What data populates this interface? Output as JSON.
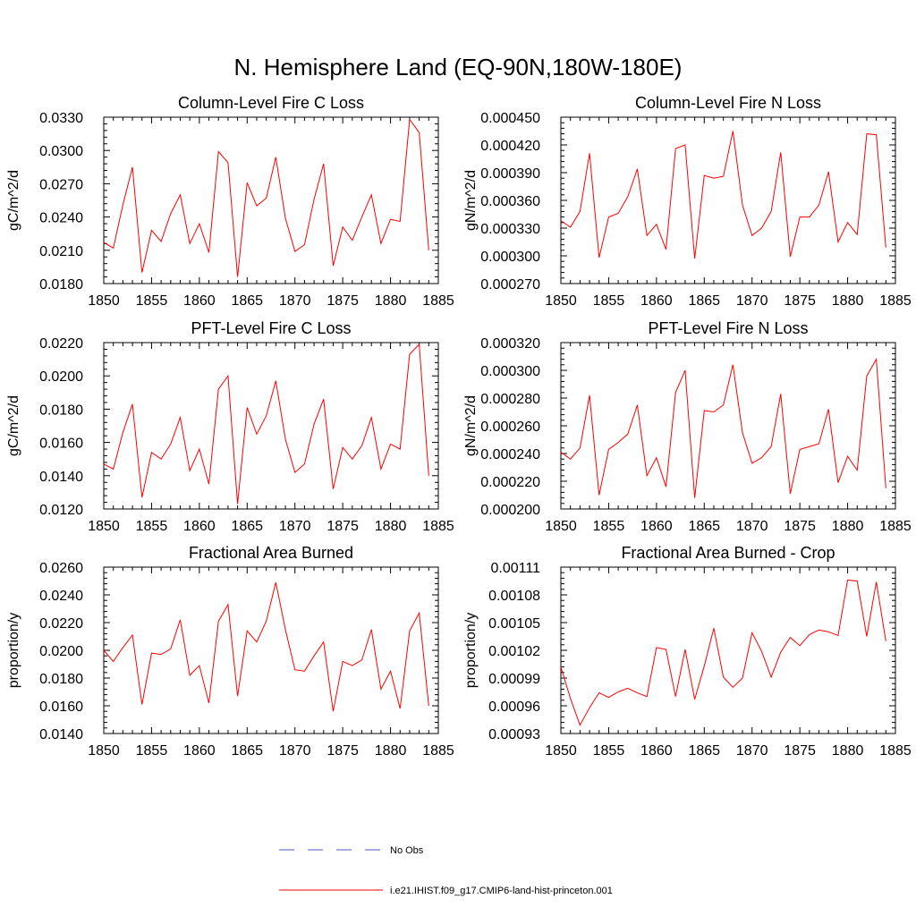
{
  "title": "N. Hemisphere Land (EQ-90N,180W-180E)",
  "legend": {
    "no_obs": "No Obs",
    "model": "i.e21.IHIST.f09_g17.CMIP6-land-hist-princeton.001"
  },
  "colors": {
    "model": "#ff0000",
    "obs": "#4c56b0",
    "axes": "#000000"
  },
  "chart_data": [
    {
      "type": "line",
      "title": "Column-Level Fire C Loss",
      "ylabel": "gC/m^2/d",
      "xlim": [
        1850,
        1885
      ],
      "ylim": [
        0.018,
        0.033
      ],
      "xticks": [
        1850,
        1855,
        1860,
        1865,
        1870,
        1875,
        1880,
        1885
      ],
      "yticks": [
        0.018,
        0.021,
        0.024,
        0.027,
        0.03,
        0.033
      ],
      "ytick_labels": [
        "0.0180",
        "0.0210",
        "0.0240",
        "0.0270",
        "0.0300",
        "0.0330"
      ],
      "grid": false,
      "series": [
        {
          "name": "i.e21.IHIST.f09_g17.CMIP6-land-hist-princeton.001",
          "x": [
            1850,
            1851,
            1852,
            1853,
            1854,
            1855,
            1856,
            1857,
            1858,
            1859,
            1860,
            1861,
            1862,
            1863,
            1864,
            1865,
            1866,
            1867,
            1868,
            1869,
            1870,
            1871,
            1872,
            1873,
            1874,
            1875,
            1876,
            1877,
            1878,
            1879,
            1880,
            1881,
            1882,
            1883,
            1884
          ],
          "values": [
            0.0217,
            0.0212,
            0.0251,
            0.0285,
            0.019,
            0.0228,
            0.0218,
            0.0243,
            0.026,
            0.0216,
            0.0234,
            0.0208,
            0.0299,
            0.0289,
            0.0186,
            0.0271,
            0.025,
            0.0257,
            0.0294,
            0.0239,
            0.0209,
            0.0215,
            0.0256,
            0.0288,
            0.0196,
            0.0231,
            0.0219,
            0.024,
            0.026,
            0.0216,
            0.0238,
            0.0236,
            0.0328,
            0.0316,
            0.021
          ]
        }
      ]
    },
    {
      "type": "line",
      "title": "Column-Level Fire N Loss",
      "ylabel": "gN/m^2/d",
      "xlim": [
        1850,
        1885
      ],
      "ylim": [
        0.00027,
        0.00045
      ],
      "xticks": [
        1850,
        1855,
        1860,
        1865,
        1870,
        1875,
        1880,
        1885
      ],
      "yticks": [
        0.00027,
        0.0003,
        0.00033,
        0.00036,
        0.00039,
        0.00042,
        0.00045
      ],
      "ytick_labels": [
        "0.000270",
        "0.000300",
        "0.000330",
        "0.000360",
        "0.000390",
        "0.000420",
        "0.000450"
      ],
      "grid": false,
      "series": [
        {
          "name": "i.e21.IHIST.f09_g17.CMIP6-land-hist-princeton.001",
          "x": [
            1850,
            1851,
            1852,
            1853,
            1854,
            1855,
            1856,
            1857,
            1858,
            1859,
            1860,
            1861,
            1862,
            1863,
            1864,
            1865,
            1866,
            1867,
            1868,
            1869,
            1870,
            1871,
            1872,
            1873,
            1874,
            1875,
            1876,
            1877,
            1878,
            1879,
            1880,
            1881,
            1882,
            1883,
            1884
          ],
          "values": [
            0.000338,
            0.000331,
            0.000348,
            0.000411,
            0.000298,
            0.000342,
            0.000346,
            0.000364,
            0.000394,
            0.000322,
            0.000334,
            0.000307,
            0.000416,
            0.00042,
            0.000297,
            0.000387,
            0.000384,
            0.000386,
            0.000435,
            0.000355,
            0.000322,
            0.00033,
            0.000348,
            0.000412,
            0.000299,
            0.000342,
            0.000342,
            0.000355,
            0.000391,
            0.000315,
            0.000336,
            0.000323,
            0.000432,
            0.000431,
            0.000309
          ]
        }
      ]
    },
    {
      "type": "line",
      "title": "PFT-Level Fire C Loss",
      "ylabel": "gC/m^2/d",
      "xlim": [
        1850,
        1885
      ],
      "ylim": [
        0.012,
        0.022
      ],
      "xticks": [
        1850,
        1855,
        1860,
        1865,
        1870,
        1875,
        1880,
        1885
      ],
      "yticks": [
        0.012,
        0.014,
        0.016,
        0.018,
        0.02,
        0.022
      ],
      "ytick_labels": [
        "0.0120",
        "0.0140",
        "0.0160",
        "0.0180",
        "0.0200",
        "0.0220"
      ],
      "grid": false,
      "series": [
        {
          "name": "i.e21.IHIST.f09_g17.CMIP6-land-hist-princeton.001",
          "x": [
            1850,
            1851,
            1852,
            1853,
            1854,
            1855,
            1856,
            1857,
            1858,
            1859,
            1860,
            1861,
            1862,
            1863,
            1864,
            1865,
            1866,
            1867,
            1868,
            1869,
            1870,
            1871,
            1872,
            1873,
            1874,
            1875,
            1876,
            1877,
            1878,
            1879,
            1880,
            1881,
            1882,
            1883,
            1884
          ],
          "values": [
            0.0147,
            0.0144,
            0.0166,
            0.0183,
            0.0127,
            0.0154,
            0.015,
            0.0159,
            0.0175,
            0.0143,
            0.0156,
            0.0135,
            0.0192,
            0.02,
            0.0123,
            0.0181,
            0.0165,
            0.0176,
            0.0197,
            0.0162,
            0.0142,
            0.0147,
            0.0171,
            0.0186,
            0.0132,
            0.0157,
            0.015,
            0.0158,
            0.0175,
            0.0144,
            0.0159,
            0.0156,
            0.0213,
            0.0219,
            0.014
          ]
        }
      ]
    },
    {
      "type": "line",
      "title": "PFT-Level Fire N Loss",
      "ylabel": "gN/m^2/d",
      "xlim": [
        1850,
        1885
      ],
      "ylim": [
        0.0002,
        0.00032
      ],
      "xticks": [
        1850,
        1855,
        1860,
        1865,
        1870,
        1875,
        1880,
        1885
      ],
      "yticks": [
        0.0002,
        0.00022,
        0.00024,
        0.00026,
        0.00028,
        0.0003,
        0.00032
      ],
      "ytick_labels": [
        "0.000200",
        "0.000220",
        "0.000240",
        "0.000260",
        "0.000280",
        "0.000300",
        "0.000320"
      ],
      "grid": false,
      "series": [
        {
          "name": "i.e21.IHIST.f09_g17.CMIP6-land-hist-princeton.001",
          "x": [
            1850,
            1851,
            1852,
            1853,
            1854,
            1855,
            1856,
            1857,
            1858,
            1859,
            1860,
            1861,
            1862,
            1863,
            1864,
            1865,
            1866,
            1867,
            1868,
            1869,
            1870,
            1871,
            1872,
            1873,
            1874,
            1875,
            1876,
            1877,
            1878,
            1879,
            1880,
            1881,
            1882,
            1883,
            1884
          ],
          "values": [
            0.000241,
            0.000236,
            0.000244,
            0.000282,
            0.00021,
            0.000243,
            0.000248,
            0.000254,
            0.000275,
            0.000224,
            0.000237,
            0.000216,
            0.000284,
            0.0003,
            0.000208,
            0.000271,
            0.00027,
            0.000275,
            0.000304,
            0.000255,
            0.000233,
            0.000237,
            0.000245,
            0.000283,
            0.000211,
            0.000243,
            0.000245,
            0.000247,
            0.000272,
            0.000219,
            0.000238,
            0.000228,
            0.000296,
            0.000308,
            0.000215
          ]
        }
      ]
    },
    {
      "type": "line",
      "title": "Fractional Area Burned",
      "ylabel": "proportion/y",
      "xlim": [
        1850,
        1885
      ],
      "ylim": [
        0.014,
        0.026
      ],
      "xticks": [
        1850,
        1855,
        1860,
        1865,
        1870,
        1875,
        1880,
        1885
      ],
      "yticks": [
        0.014,
        0.016,
        0.018,
        0.02,
        0.022,
        0.024,
        0.026
      ],
      "ytick_labels": [
        "0.0140",
        "0.0160",
        "0.0180",
        "0.0200",
        "0.0220",
        "0.0240",
        "0.0260"
      ],
      "grid": false,
      "series": [
        {
          "name": "i.e21.IHIST.f09_g17.CMIP6-land-hist-princeton.001",
          "x": [
            1850,
            1851,
            1852,
            1853,
            1854,
            1855,
            1856,
            1857,
            1858,
            1859,
            1860,
            1861,
            1862,
            1863,
            1864,
            1865,
            1866,
            1867,
            1868,
            1869,
            1870,
            1871,
            1872,
            1873,
            1874,
            1875,
            1876,
            1877,
            1878,
            1879,
            1880,
            1881,
            1882,
            1883,
            1884
          ],
          "values": [
            0.02,
            0.0192,
            0.0202,
            0.0211,
            0.0161,
            0.0198,
            0.0197,
            0.0201,
            0.0222,
            0.0182,
            0.0189,
            0.0162,
            0.0221,
            0.0233,
            0.0167,
            0.0214,
            0.0206,
            0.0221,
            0.0249,
            0.0215,
            0.0186,
            0.0185,
            0.0196,
            0.0206,
            0.0156,
            0.0192,
            0.0189,
            0.0193,
            0.0215,
            0.0172,
            0.0185,
            0.0158,
            0.0214,
            0.0227,
            0.016
          ]
        }
      ]
    },
    {
      "type": "line",
      "title": "Fractional Area Burned - Crop",
      "ylabel": "proportion/y",
      "xlim": [
        1850,
        1885
      ],
      "ylim": [
        0.00093,
        0.00111
      ],
      "xticks": [
        1850,
        1855,
        1860,
        1865,
        1870,
        1875,
        1880,
        1885
      ],
      "yticks": [
        0.00093,
        0.00096,
        0.00099,
        0.00102,
        0.00105,
        0.00108,
        0.00111
      ],
      "ytick_labels": [
        "0.00093",
        "0.00096",
        "0.00099",
        "0.00102",
        "0.00105",
        "0.00108",
        "0.00111"
      ],
      "grid": false,
      "series": [
        {
          "name": "i.e21.IHIST.f09_g17.CMIP6-land-hist-princeton.001",
          "x": [
            1850,
            1851,
            1852,
            1853,
            1854,
            1855,
            1856,
            1857,
            1858,
            1859,
            1860,
            1861,
            1862,
            1863,
            1864,
            1865,
            1866,
            1867,
            1868,
            1869,
            1870,
            1871,
            1872,
            1873,
            1874,
            1875,
            1876,
            1877,
            1878,
            1879,
            1880,
            1881,
            1882,
            1883,
            1884
          ],
          "values": [
            0.001002,
            0.000968,
            0.000939,
            0.000958,
            0.000974,
            0.000969,
            0.000975,
            0.000979,
            0.000974,
            0.00097,
            0.001023,
            0.001021,
            0.00097,
            0.001021,
            0.000967,
            0.001003,
            0.001044,
            0.000991,
            0.00098,
            0.00099,
            0.001039,
            0.001019,
            0.000991,
            0.001018,
            0.001034,
            0.001025,
            0.001037,
            0.001042,
            0.00104,
            0.001036,
            0.001096,
            0.001095,
            0.001035,
            0.001094,
            0.00103
          ]
        }
      ]
    }
  ]
}
